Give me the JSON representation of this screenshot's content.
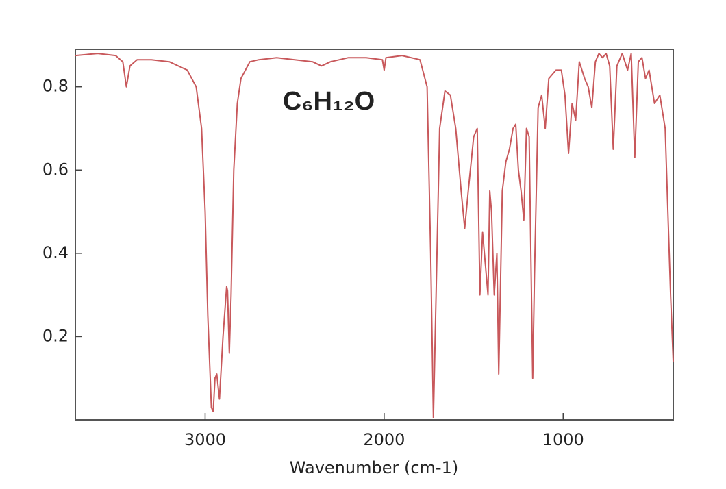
{
  "chart_data": {
    "type": "line",
    "annotation": "C₆H₁₂O",
    "x_label": "Wavenumber (cm-1)",
    "color": "#c8585b",
    "xlim": [
      3725,
      385
    ],
    "ylim": [
      0.0,
      0.89
    ],
    "xticks": [
      3000,
      2000,
      1000
    ],
    "yticks": [
      0.2,
      0.4,
      0.6,
      0.8
    ],
    "x": [
      3725,
      3600,
      3500,
      3460,
      3440,
      3420,
      3380,
      3300,
      3200,
      3100,
      3050,
      3020,
      3000,
      2985,
      2965,
      2955,
      2945,
      2935,
      2920,
      2900,
      2880,
      2875,
      2865,
      2855,
      2840,
      2820,
      2800,
      2750,
      2700,
      2600,
      2500,
      2400,
      2350,
      2300,
      2200,
      2100,
      2010,
      2000,
      1990,
      1900,
      1800,
      1760,
      1740,
      1725,
      1710,
      1690,
      1660,
      1630,
      1600,
      1570,
      1550,
      1530,
      1500,
      1480,
      1465,
      1450,
      1430,
      1420,
      1410,
      1400,
      1385,
      1370,
      1360,
      1340,
      1320,
      1300,
      1280,
      1265,
      1250,
      1235,
      1220,
      1205,
      1190,
      1170,
      1160,
      1140,
      1120,
      1100,
      1080,
      1040,
      1010,
      990,
      970,
      950,
      930,
      910,
      880,
      860,
      840,
      820,
      800,
      780,
      760,
      740,
      720,
      700,
      670,
      640,
      620,
      600,
      580,
      560,
      540,
      520,
      490,
      460,
      430,
      400,
      385
    ],
    "values": [
      0.875,
      0.88,
      0.875,
      0.86,
      0.8,
      0.85,
      0.865,
      0.865,
      0.86,
      0.84,
      0.8,
      0.7,
      0.5,
      0.25,
      0.03,
      0.02,
      0.1,
      0.11,
      0.05,
      0.2,
      0.32,
      0.31,
      0.16,
      0.3,
      0.6,
      0.76,
      0.82,
      0.86,
      0.865,
      0.87,
      0.865,
      0.86,
      0.85,
      0.86,
      0.87,
      0.87,
      0.865,
      0.84,
      0.87,
      0.875,
      0.865,
      0.8,
      0.4,
      0.005,
      0.3,
      0.7,
      0.79,
      0.78,
      0.7,
      0.55,
      0.46,
      0.55,
      0.68,
      0.7,
      0.3,
      0.45,
      0.35,
      0.3,
      0.55,
      0.5,
      0.3,
      0.4,
      0.11,
      0.55,
      0.62,
      0.65,
      0.7,
      0.71,
      0.6,
      0.55,
      0.48,
      0.7,
      0.68,
      0.1,
      0.35,
      0.75,
      0.78,
      0.7,
      0.82,
      0.84,
      0.84,
      0.78,
      0.64,
      0.76,
      0.72,
      0.86,
      0.82,
      0.8,
      0.75,
      0.86,
      0.88,
      0.87,
      0.88,
      0.85,
      0.65,
      0.85,
      0.88,
      0.84,
      0.88,
      0.63,
      0.86,
      0.87,
      0.82,
      0.84,
      0.76,
      0.78,
      0.7,
      0.3,
      0.14
    ]
  }
}
